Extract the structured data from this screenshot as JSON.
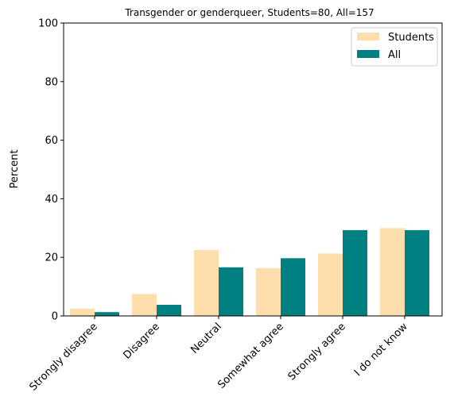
{
  "chart_data": {
    "type": "bar",
    "title": "Transgender or genderqueer, Students=80, All=157",
    "xlabel": "",
    "ylabel": "Percent",
    "ylim": [
      0,
      100
    ],
    "yticks": [
      0,
      20,
      40,
      60,
      80,
      100
    ],
    "categories": [
      "Strongly disagree",
      "Disagree",
      "Neutral",
      "Somewhat agree",
      "Strongly agree",
      "I do not know"
    ],
    "series": [
      {
        "name": "Students",
        "color": "#ffdead",
        "values": [
          2.5,
          7.5,
          22.5,
          16.3,
          21.3,
          30.0
        ]
      },
      {
        "name": "All",
        "color": "#008080",
        "values": [
          1.3,
          3.8,
          16.6,
          19.7,
          29.3,
          29.3
        ]
      }
    ],
    "legend": "top-right",
    "grid": false
  }
}
